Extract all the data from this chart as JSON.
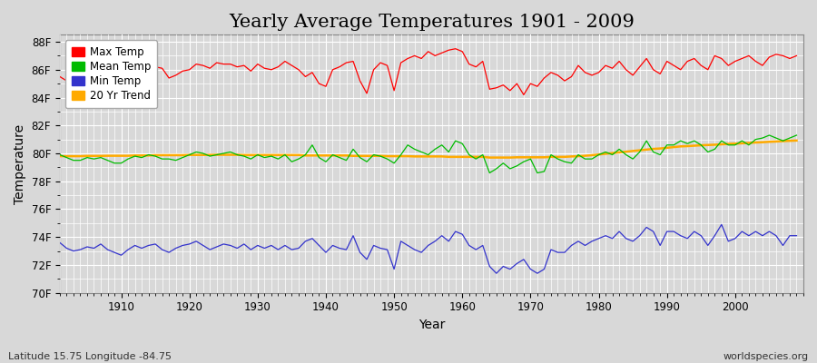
{
  "title": "Yearly Average Temperatures 1901 - 2009",
  "xlabel": "Year",
  "ylabel": "Temperature",
  "subtitle_left": "Latitude 15.75 Longitude -84.75",
  "subtitle_right": "worldspecies.org",
  "years": [
    1901,
    1902,
    1903,
    1904,
    1905,
    1906,
    1907,
    1908,
    1909,
    1910,
    1911,
    1912,
    1913,
    1914,
    1915,
    1916,
    1917,
    1918,
    1919,
    1920,
    1921,
    1922,
    1923,
    1924,
    1925,
    1926,
    1927,
    1928,
    1929,
    1930,
    1931,
    1932,
    1933,
    1934,
    1935,
    1936,
    1937,
    1938,
    1939,
    1940,
    1941,
    1942,
    1943,
    1944,
    1945,
    1946,
    1947,
    1948,
    1949,
    1950,
    1951,
    1952,
    1953,
    1954,
    1955,
    1956,
    1957,
    1958,
    1959,
    1960,
    1961,
    1962,
    1963,
    1964,
    1965,
    1966,
    1967,
    1968,
    1969,
    1970,
    1971,
    1972,
    1973,
    1974,
    1975,
    1976,
    1977,
    1978,
    1979,
    1980,
    1981,
    1982,
    1983,
    1984,
    1985,
    1986,
    1987,
    1988,
    1989,
    1990,
    1991,
    1992,
    1993,
    1994,
    1995,
    1996,
    1997,
    1998,
    1999,
    2000,
    2001,
    2002,
    2003,
    2004,
    2005,
    2006,
    2007,
    2008,
    2009
  ],
  "max_temp": [
    85.5,
    85.2,
    85.0,
    85.4,
    85.6,
    85.3,
    85.8,
    86.0,
    85.5,
    85.3,
    85.6,
    86.2,
    86.0,
    86.3,
    86.2,
    86.1,
    85.4,
    85.6,
    85.9,
    86.0,
    86.4,
    86.3,
    86.1,
    86.5,
    86.4,
    86.4,
    86.2,
    86.3,
    85.9,
    86.4,
    86.1,
    86.0,
    86.2,
    86.6,
    86.3,
    86.0,
    85.5,
    85.8,
    85.0,
    84.8,
    86.0,
    86.2,
    86.5,
    86.6,
    85.2,
    84.3,
    86.0,
    86.5,
    86.3,
    84.5,
    86.5,
    86.8,
    87.0,
    86.8,
    87.3,
    87.0,
    87.2,
    87.4,
    87.5,
    87.3,
    86.4,
    86.2,
    86.6,
    84.6,
    84.7,
    84.9,
    84.5,
    85.0,
    84.2,
    85.0,
    84.8,
    85.4,
    85.8,
    85.6,
    85.2,
    85.5,
    86.3,
    85.8,
    85.6,
    85.8,
    86.3,
    86.1,
    86.6,
    86.0,
    85.6,
    86.2,
    86.8,
    86.0,
    85.7,
    86.6,
    86.3,
    86.0,
    86.6,
    86.8,
    86.3,
    86.0,
    87.0,
    86.8,
    86.3,
    86.6,
    86.8,
    87.0,
    86.6,
    86.3,
    86.9,
    87.1,
    87.0,
    86.8,
    87.0
  ],
  "mean_temp": [
    79.9,
    79.7,
    79.5,
    79.5,
    79.7,
    79.6,
    79.7,
    79.5,
    79.3,
    79.3,
    79.6,
    79.8,
    79.7,
    79.9,
    79.8,
    79.6,
    79.6,
    79.5,
    79.7,
    79.9,
    80.1,
    80.0,
    79.8,
    79.9,
    80.0,
    80.1,
    79.9,
    79.8,
    79.6,
    79.9,
    79.7,
    79.8,
    79.6,
    79.9,
    79.4,
    79.6,
    79.9,
    80.6,
    79.7,
    79.4,
    79.9,
    79.7,
    79.5,
    80.3,
    79.7,
    79.4,
    79.9,
    79.8,
    79.6,
    79.3,
    79.9,
    80.6,
    80.3,
    80.1,
    79.9,
    80.3,
    80.6,
    80.1,
    80.9,
    80.7,
    79.9,
    79.6,
    79.9,
    78.6,
    78.9,
    79.3,
    78.9,
    79.1,
    79.4,
    79.6,
    78.6,
    78.7,
    79.9,
    79.6,
    79.4,
    79.3,
    79.9,
    79.6,
    79.6,
    79.9,
    80.1,
    79.9,
    80.3,
    79.9,
    79.6,
    80.1,
    80.9,
    80.1,
    79.9,
    80.6,
    80.6,
    80.9,
    80.7,
    80.9,
    80.6,
    80.1,
    80.3,
    80.9,
    80.6,
    80.6,
    80.9,
    80.6,
    81.0,
    81.1,
    81.3,
    81.1,
    80.9,
    81.1,
    81.3
  ],
  "min_temp": [
    73.6,
    73.2,
    73.0,
    73.1,
    73.3,
    73.2,
    73.5,
    73.1,
    72.9,
    72.7,
    73.1,
    73.4,
    73.2,
    73.4,
    73.5,
    73.1,
    72.9,
    73.2,
    73.4,
    73.5,
    73.7,
    73.4,
    73.1,
    73.3,
    73.5,
    73.4,
    73.2,
    73.5,
    73.1,
    73.4,
    73.2,
    73.4,
    73.1,
    73.4,
    73.1,
    73.2,
    73.7,
    73.9,
    73.4,
    72.9,
    73.4,
    73.2,
    73.1,
    74.1,
    72.9,
    72.4,
    73.4,
    73.2,
    73.1,
    71.7,
    73.7,
    73.4,
    73.1,
    72.9,
    73.4,
    73.7,
    74.1,
    73.7,
    74.4,
    74.2,
    73.4,
    73.1,
    73.4,
    71.9,
    71.4,
    71.9,
    71.7,
    72.1,
    72.4,
    71.7,
    71.4,
    71.7,
    73.1,
    72.9,
    72.9,
    73.4,
    73.7,
    73.4,
    73.7,
    73.9,
    74.1,
    73.9,
    74.4,
    73.9,
    73.7,
    74.1,
    74.7,
    74.4,
    73.4,
    74.4,
    74.4,
    74.1,
    73.9,
    74.4,
    74.1,
    73.4,
    74.1,
    74.9,
    73.7,
    73.9,
    74.4,
    74.1,
    74.4,
    74.1,
    74.4,
    74.1,
    73.4,
    74.1,
    74.1
  ],
  "trend_20yr": [
    79.8,
    79.8,
    79.8,
    79.8,
    79.82,
    79.82,
    79.82,
    79.83,
    79.83,
    79.83,
    79.83,
    79.85,
    79.85,
    79.85,
    79.87,
    79.87,
    79.87,
    79.87,
    79.87,
    79.89,
    79.89,
    79.89,
    79.89,
    79.9,
    79.9,
    79.9,
    79.9,
    79.88,
    79.88,
    79.88,
    79.88,
    79.88,
    79.88,
    79.88,
    79.88,
    79.88,
    79.85,
    79.85,
    79.85,
    79.85,
    79.85,
    79.85,
    79.85,
    79.82,
    79.82,
    79.82,
    79.82,
    79.82,
    79.8,
    79.8,
    79.8,
    79.8,
    79.78,
    79.78,
    79.78,
    79.78,
    79.78,
    79.75,
    79.75,
    79.75,
    79.75,
    79.75,
    79.75,
    79.7,
    79.7,
    79.7,
    79.7,
    79.72,
    79.72,
    79.72,
    79.72,
    79.72,
    79.75,
    79.75,
    79.75,
    79.78,
    79.8,
    79.83,
    79.87,
    79.92,
    79.97,
    80.02,
    80.07,
    80.12,
    80.17,
    80.22,
    80.27,
    80.32,
    80.35,
    80.4,
    80.45,
    80.5,
    80.52,
    80.55,
    80.58,
    80.6,
    80.62,
    80.65,
    80.68,
    80.7,
    80.72,
    80.75,
    80.78,
    80.8,
    80.83,
    80.85,
    80.88,
    80.9,
    80.92
  ],
  "max_color": "#ff0000",
  "mean_color": "#00bb00",
  "min_color": "#3333cc",
  "trend_color": "#ffaa00",
  "fig_bg_color": "#d8d8d8",
  "plot_bg_color": "#d8d8d8",
  "ylim": [
    70,
    88.5
  ],
  "yticks": [
    70,
    72,
    74,
    76,
    78,
    80,
    82,
    84,
    86,
    88
  ],
  "ytick_labels": [
    "70F",
    "72F",
    "74F",
    "76F",
    "78F",
    "80F",
    "82F",
    "84F",
    "86F",
    "88F"
  ],
  "xticks": [
    1910,
    1920,
    1930,
    1940,
    1950,
    1960,
    1970,
    1980,
    1990,
    2000
  ],
  "hline_y": 88.0,
  "title_fontsize": 15,
  "legend_labels": [
    "Max Temp",
    "Mean Temp",
    "Min Temp",
    "20 Yr Trend"
  ],
  "legend_colors": [
    "#ff0000",
    "#00bb00",
    "#3333cc",
    "#ffaa00"
  ]
}
